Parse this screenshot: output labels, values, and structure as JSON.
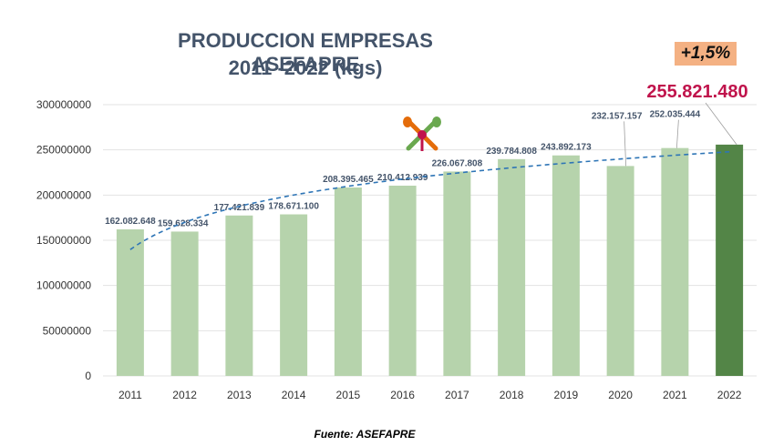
{
  "title_line1": "PRODUCCION EMPRESAS ASEFAPRE",
  "title_line2": "2011 -2022 (kgs)",
  "growth_badge": "+1,5%",
  "highlight_value": "255.821.480",
  "source": "Fuente: ASEFAPRE",
  "colors": {
    "bar": "#b6d3ac",
    "bar_highlight": "#538547",
    "trend": "#2e75b6",
    "title": "#44546a",
    "highlight_text": "#c0144c",
    "badge_bg": "#f4b183"
  },
  "logo_icon": "fork-and-spoon-icon",
  "chart_data": {
    "type": "bar",
    "title": "PRODUCCION EMPRESAS ASEFAPRE 2011 -2022 (kgs)",
    "categories": [
      "2011",
      "2012",
      "2013",
      "2014",
      "2015",
      "2016",
      "2017",
      "2018",
      "2019",
      "2020",
      "2021",
      "2022"
    ],
    "values": [
      162082648,
      159628334,
      177421839,
      178671100,
      208395465,
      210412939,
      226067808,
      239784808,
      243892173,
      232157157,
      252035444,
      255821480
    ],
    "data_labels": [
      "162.082.648",
      "159.628.334",
      "177.421.839",
      "178.671.100",
      "208.395.465",
      "210.412.939",
      "226.067.808",
      "239.784.808",
      "243.892.173",
      "232.157.157",
      "252.035.444",
      ""
    ],
    "highlight_index": 11,
    "ylim": [
      0,
      300000000
    ],
    "yticks": [
      "0",
      "50000000",
      "100000000",
      "150000000",
      "200000000",
      "250000000",
      "300000000"
    ],
    "trendline": "logarithmic, dashed",
    "grid": true
  }
}
